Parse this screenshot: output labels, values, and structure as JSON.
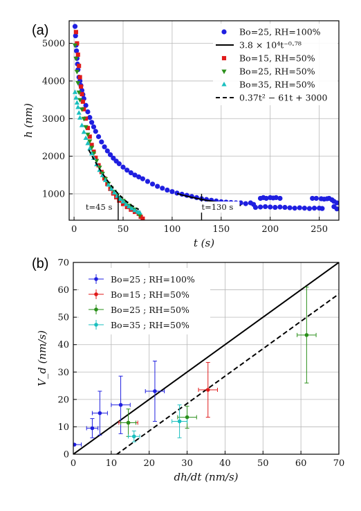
{
  "chart_data": [
    {
      "panel_label": "(a)",
      "type": "scatter",
      "xlabel": "t (s)",
      "ylabel": "h (nm)",
      "xlim": [
        -5,
        270
      ],
      "ylim": [
        300,
        5600
      ],
      "xticks": [
        0,
        50,
        100,
        150,
        200,
        250
      ],
      "yticks": [
        1000,
        2000,
        3000,
        4000,
        5000
      ],
      "grid": true,
      "legend_position": "top-right",
      "series": [
        {
          "name": "Bo=25, RH=100%",
          "marker": "circle",
          "color": "#1f1fe0",
          "points": [
            [
              1,
              5450
            ],
            [
              1.5,
              5200
            ],
            [
              2,
              4950
            ],
            [
              2.5,
              4800
            ],
            [
              3,
              4600
            ],
            [
              3.5,
              4450
            ],
            [
              4,
              4300
            ],
            [
              5,
              4100
            ],
            [
              6,
              4000
            ],
            [
              7,
              3880
            ],
            [
              8,
              3750
            ],
            [
              9,
              3640
            ],
            [
              10,
              3530
            ],
            [
              12,
              3350
            ],
            [
              14,
              3180
            ],
            [
              16,
              3030
            ],
            [
              18,
              2900
            ],
            [
              20,
              2780
            ],
            [
              22,
              2660
            ],
            [
              25,
              2520
            ],
            [
              28,
              2380
            ],
            [
              31,
              2250
            ],
            [
              34,
              2140
            ],
            [
              37,
              2040
            ],
            [
              40,
              1950
            ],
            [
              43,
              1870
            ],
            [
              46,
              1800
            ],
            [
              50,
              1710
            ],
            [
              54,
              1630
            ],
            [
              58,
              1560
            ],
            [
              62,
              1500
            ],
            [
              66,
              1450
            ],
            [
              70,
              1400
            ],
            [
              75,
              1330
            ],
            [
              80,
              1260
            ],
            [
              85,
              1200
            ],
            [
              90,
              1150
            ],
            [
              95,
              1100
            ],
            [
              100,
              1060
            ],
            [
              105,
              1020
            ],
            [
              110,
              990
            ],
            [
              115,
              960
            ],
            [
              120,
              930
            ],
            [
              125,
              900
            ],
            [
              130,
              870
            ],
            [
              135,
              850
            ],
            [
              140,
              830
            ],
            [
              145,
              810
            ],
            [
              150,
              790
            ],
            [
              155,
              780
            ],
            [
              160,
              770
            ],
            [
              165,
              760
            ],
            [
              170,
              760
            ],
            [
              175,
              740
            ],
            [
              180,
              760
            ],
            [
              183,
              720
            ],
            [
              190,
              880
            ],
            [
              193,
              900
            ],
            [
              196,
              880
            ],
            [
              200,
              900
            ],
            [
              203,
              890
            ],
            [
              206,
              900
            ],
            [
              210,
              880
            ],
            [
              185,
              640
            ],
            [
              190,
              650
            ],
            [
              195,
              660
            ],
            [
              200,
              650
            ],
            [
              205,
              640
            ],
            [
              210,
              650
            ],
            [
              215,
              640
            ],
            [
              220,
              630
            ],
            [
              225,
              620
            ],
            [
              230,
              630
            ],
            [
              235,
              620
            ],
            [
              240,
              610
            ],
            [
              245,
              620
            ],
            [
              250,
              620
            ],
            [
              253,
              610
            ],
            [
              243,
              880
            ],
            [
              247,
              880
            ],
            [
              252,
              870
            ],
            [
              255,
              860
            ],
            [
              258,
              870
            ],
            [
              260,
              880
            ],
            [
              263,
              840
            ],
            [
              265,
              800
            ],
            [
              268,
              760
            ],
            [
              265,
              660
            ],
            [
              268,
              600
            ]
          ]
        },
        {
          "name": "$3.8 \\times 10^4 t^{-0.78}$",
          "label_text": "3.8 × 10⁴t⁻⁰·⁷⁸",
          "style": "solid",
          "color": "#000000",
          "function": "38000 * t^-0.78",
          "x_range": [
            105,
            170
          ]
        },
        {
          "name": "Bo=15, RH=50%",
          "marker": "square",
          "color": "#e01a1a",
          "points": [
            [
              2,
              5300
            ],
            [
              3,
              5000
            ],
            [
              4,
              4700
            ],
            [
              5,
              4400
            ],
            [
              6,
              4100
            ],
            [
              7,
              3850
            ],
            [
              8,
              3650
            ],
            [
              9,
              3450
            ],
            [
              10,
              3250
            ],
            [
              12,
              3000
            ],
            [
              14,
              2750
            ],
            [
              16,
              2520
            ],
            [
              18,
              2300
            ],
            [
              20,
              2120
            ],
            [
              22,
              1960
            ],
            [
              25,
              1760
            ],
            [
              28,
              1580
            ],
            [
              31,
              1410
            ],
            [
              34,
              1260
            ],
            [
              37,
              1130
            ],
            [
              40,
              1010
            ],
            [
              43,
              910
            ],
            [
              46,
              820
            ],
            [
              50,
              730
            ],
            [
              54,
              650
            ],
            [
              58,
              580
            ],
            [
              62,
              520
            ],
            [
              66,
              470
            ],
            [
              68,
              390
            ],
            [
              70,
              340
            ]
          ]
        },
        {
          "name": "Bo=25, RH=50%",
          "marker": "triangle-down",
          "color": "#2a8f1a",
          "points": [
            [
              1,
              4950
            ],
            [
              2,
              4600
            ],
            [
              3,
              4250
            ],
            [
              4,
              3950
            ],
            [
              5,
              3700
            ],
            [
              6,
              3500
            ],
            [
              8,
              3250
            ],
            [
              10,
              3000
            ],
            [
              12,
              2780
            ],
            [
              14,
              2580
            ],
            [
              16,
              2400
            ],
            [
              18,
              2230
            ],
            [
              20,
              2080
            ],
            [
              23,
              1880
            ],
            [
              26,
              1700
            ],
            [
              29,
              1540
            ],
            [
              32,
              1400
            ],
            [
              35,
              1270
            ],
            [
              38,
              1160
            ],
            [
              41,
              1060
            ],
            [
              44,
              970
            ],
            [
              47,
              890
            ],
            [
              50,
              820
            ],
            [
              53,
              750
            ],
            [
              56,
              690
            ],
            [
              59,
              640
            ],
            [
              62,
              590
            ],
            [
              65,
              500
            ],
            [
              67,
              430
            ]
          ]
        },
        {
          "name": "Bo=35, RH=50%",
          "marker": "triangle-up",
          "color": "#1abfbf",
          "points": [
            [
              1,
              3700
            ],
            [
              2,
              3550
            ],
            [
              3,
              3420
            ],
            [
              4,
              3300
            ],
            [
              5,
              3150
            ],
            [
              6,
              3020
            ],
            [
              8,
              2820
            ],
            [
              10,
              2640
            ],
            [
              12,
              2480
            ],
            [
              14,
              2340
            ],
            [
              16,
              2200
            ],
            [
              18,
              2070
            ],
            [
              20,
              1950
            ],
            [
              23,
              1780
            ],
            [
              26,
              1630
            ],
            [
              29,
              1490
            ],
            [
              32,
              1360
            ],
            [
              35,
              1240
            ],
            [
              38,
              1130
            ],
            [
              41,
              1030
            ],
            [
              44,
              940
            ],
            [
              47,
              860
            ],
            [
              50,
              790
            ],
            [
              53,
              720
            ],
            [
              56,
              660
            ],
            [
              59,
              610
            ],
            [
              62,
              560
            ],
            [
              65,
              520
            ],
            [
              67,
              500
            ]
          ]
        },
        {
          "name": "$0.37 t^2 - 61 t + 3000$",
          "label_text": "0.37t² − 61t + 3000",
          "style": "dashed",
          "color": "#000000",
          "function": "0.37*t^2 - 61*t + 3000",
          "x_range": [
            15,
            66
          ]
        }
      ],
      "annotations": [
        {
          "text": "t=45 s",
          "x": 45
        },
        {
          "text": "t=130 s",
          "x": 130
        }
      ]
    },
    {
      "panel_label": "(b)",
      "type": "scatter",
      "xlabel": "dh/dt (nm/s)",
      "ylabel": "V_d (nm/s)",
      "xlim": [
        0,
        70
      ],
      "ylim": [
        0,
        70
      ],
      "xticks": [
        0,
        10,
        20,
        30,
        40,
        50,
        60,
        70
      ],
      "yticks": [
        0,
        10,
        20,
        30,
        40,
        50,
        60,
        70
      ],
      "grid": true,
      "legend_position": "top-left",
      "lines": [
        {
          "style": "solid",
          "color": "#000000",
          "slope": 1.0,
          "intercept": 0
        },
        {
          "style": "dashed",
          "color": "#000000",
          "slope": 1.0,
          "intercept": -11.5
        }
      ],
      "series": [
        {
          "name": "Bo=25 ; RH=100%",
          "color": "#1f1fe0",
          "points": [
            {
              "x": 0.3,
              "y": 3.5,
              "xerr": 1.8,
              "yerr": 0
            },
            {
              "x": 5,
              "y": 9.5,
              "xerr": 1.5,
              "yerr": 3.5
            },
            {
              "x": 7,
              "y": 15,
              "xerr": 2,
              "yerr": 8
            },
            {
              "x": 12.5,
              "y": 18,
              "xerr": 2.5,
              "yerr": 10.5
            },
            {
              "x": 21.5,
              "y": 23,
              "xerr": 2.5,
              "yerr": 11
            }
          ]
        },
        {
          "name": "Bo=15 ; RH=50%",
          "color": "#e01a1a",
          "points": [
            {
              "x": 14.5,
              "y": 11.5,
              "xerr": 2.5,
              "yerr": 0
            },
            {
              "x": 35.5,
              "y": 23.5,
              "xerr": 2.5,
              "yerr": 10
            }
          ]
        },
        {
          "name": "Bo=25 ; RH=50%",
          "color": "#2a8f1a",
          "points": [
            {
              "x": 14.5,
              "y": 11.5,
              "xerr": 2,
              "yerr": 5
            },
            {
              "x": 30,
              "y": 13.5,
              "xerr": 2.5,
              "yerr": 4
            },
            {
              "x": 61.5,
              "y": 43.5,
              "xerr": 2.5,
              "yerr": 17.5
            }
          ]
        },
        {
          "name": "Bo=35 ; RH=50%",
          "color": "#1abfbf",
          "points": [
            {
              "x": 16,
              "y": 6.5,
              "xerr": 1.5,
              "yerr": 2
            },
            {
              "x": 28,
              "y": 12,
              "xerr": 2,
              "yerr": 6
            }
          ]
        }
      ]
    }
  ]
}
